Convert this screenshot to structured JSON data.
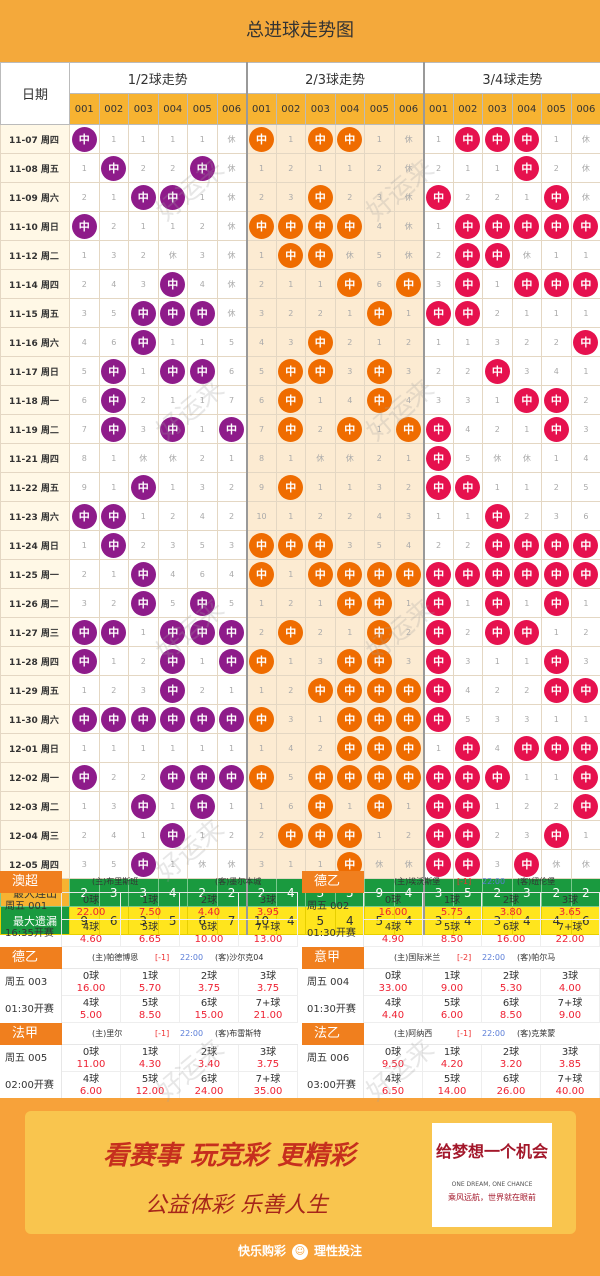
{
  "title": "总进球走势图",
  "header": {
    "date_label": "日期",
    "groups": [
      "1/2球走势",
      "2/3球走势",
      "3/4球走势"
    ],
    "nums": [
      "001",
      "002",
      "003",
      "004",
      "005",
      "006"
    ]
  },
  "ball_label": "中",
  "trend": [
    {
      "d": "11-07 周四",
      "c": [
        "中",
        "1",
        "1",
        "1",
        "1",
        "休",
        "中",
        "1",
        "中",
        "中",
        "1",
        "休",
        "1",
        "中",
        "中",
        "中",
        "1",
        "休"
      ]
    },
    {
      "d": "11-08 周五",
      "c": [
        "1",
        "中",
        "2",
        "2",
        "中",
        "休",
        "1",
        "2",
        "1",
        "1",
        "2",
        "休",
        "2",
        "1",
        "1",
        "中",
        "2",
        "休"
      ]
    },
    {
      "d": "11-09 周六",
      "c": [
        "2",
        "1",
        "中",
        "中",
        "1",
        "休",
        "2",
        "3",
        "中",
        "2",
        "3",
        "休",
        "中",
        "2",
        "2",
        "1",
        "中",
        "休"
      ]
    },
    {
      "d": "11-10 周日",
      "c": [
        "中",
        "2",
        "1",
        "1",
        "2",
        "休",
        "中",
        "中",
        "中",
        "中",
        "4",
        "休",
        "1",
        "中",
        "中",
        "中",
        "中",
        "中"
      ]
    },
    {
      "d": "11-12 周二",
      "c": [
        "1",
        "3",
        "2",
        "休",
        "3",
        "休",
        "1",
        "中",
        "中",
        "休",
        "5",
        "休",
        "2",
        "中",
        "中",
        "休",
        "1",
        "1"
      ]
    },
    {
      "d": "11-14 周四",
      "c": [
        "2",
        "4",
        "3",
        "中",
        "4",
        "休",
        "2",
        "1",
        "1",
        "中",
        "6",
        "中",
        "3",
        "中",
        "1",
        "中",
        "中",
        "中"
      ]
    },
    {
      "d": "11-15 周五",
      "c": [
        "3",
        "5",
        "中",
        "中",
        "中",
        "休",
        "3",
        "2",
        "2",
        "1",
        "中",
        "1",
        "中",
        "中",
        "2",
        "1",
        "1",
        "1"
      ]
    },
    {
      "d": "11-16 周六",
      "c": [
        "4",
        "6",
        "中",
        "1",
        "1",
        "5",
        "4",
        "3",
        "中",
        "2",
        "1",
        "2",
        "1",
        "1",
        "3",
        "2",
        "2",
        "中"
      ]
    },
    {
      "d": "11-17 周日",
      "c": [
        "5",
        "中",
        "1",
        "中",
        "中",
        "6",
        "5",
        "中",
        "中",
        "3",
        "中",
        "3",
        "2",
        "2",
        "中",
        "3",
        "4",
        "1"
      ]
    },
    {
      "d": "11-18 周一",
      "c": [
        "6",
        "中",
        "2",
        "1",
        "1",
        "7",
        "6",
        "中",
        "1",
        "4",
        "中",
        "4",
        "3",
        "3",
        "1",
        "中",
        "中",
        "2"
      ]
    },
    {
      "d": "11-19 周二",
      "c": [
        "7",
        "中",
        "3",
        "中",
        "1",
        "中",
        "7",
        "中",
        "2",
        "中",
        "1",
        "中",
        "中",
        "4",
        "2",
        "1",
        "中",
        "3"
      ]
    },
    {
      "d": "11-21 周四",
      "c": [
        "8",
        "1",
        "休",
        "休",
        "2",
        "1",
        "8",
        "1",
        "休",
        "休",
        "2",
        "1",
        "中",
        "5",
        "休",
        "休",
        "1",
        "4"
      ]
    },
    {
      "d": "11-22 周五",
      "c": [
        "9",
        "1",
        "中",
        "1",
        "3",
        "2",
        "9",
        "中",
        "1",
        "1",
        "3",
        "2",
        "中",
        "中",
        "1",
        "1",
        "2",
        "5"
      ]
    },
    {
      "d": "11-23 周六",
      "c": [
        "中",
        "中",
        "1",
        "2",
        "4",
        "2",
        "10",
        "1",
        "2",
        "2",
        "4",
        "3",
        "1",
        "1",
        "中",
        "2",
        "3",
        "6"
      ]
    },
    {
      "d": "11-24 周日",
      "c": [
        "1",
        "中",
        "2",
        "3",
        "5",
        "3",
        "中",
        "中",
        "中",
        "3",
        "5",
        "4",
        "2",
        "2",
        "中",
        "中",
        "中",
        "中"
      ]
    },
    {
      "d": "11-25 周一",
      "c": [
        "2",
        "1",
        "中",
        "4",
        "6",
        "4",
        "中",
        "1",
        "中",
        "中",
        "中",
        "中",
        "中",
        "中",
        "中",
        "中",
        "中",
        "中"
      ]
    },
    {
      "d": "11-26 周二",
      "c": [
        "3",
        "2",
        "中",
        "5",
        "中",
        "5",
        "1",
        "2",
        "1",
        "中",
        "中",
        "1",
        "中",
        "1",
        "中",
        "1",
        "中",
        "1"
      ]
    },
    {
      "d": "11-27 周三",
      "c": [
        "中",
        "中",
        "1",
        "中",
        "中",
        "中",
        "2",
        "中",
        "2",
        "1",
        "中",
        "2",
        "中",
        "2",
        "中",
        "中",
        "1",
        "2"
      ]
    },
    {
      "d": "11-28 周四",
      "c": [
        "中",
        "1",
        "2",
        "中",
        "1",
        "中",
        "中",
        "1",
        "3",
        "中",
        "中",
        "3",
        "中",
        "3",
        "1",
        "1",
        "中",
        "3"
      ]
    },
    {
      "d": "11-29 周五",
      "c": [
        "1",
        "2",
        "3",
        "中",
        "2",
        "1",
        "1",
        "2",
        "中",
        "中",
        "中",
        "中",
        "中",
        "4",
        "2",
        "2",
        "中",
        "中"
      ]
    },
    {
      "d": "11-30 周六",
      "c": [
        "中",
        "中",
        "中",
        "中",
        "中",
        "中",
        "中",
        "3",
        "1",
        "中",
        "中",
        "中",
        "中",
        "5",
        "3",
        "3",
        "1",
        "1"
      ]
    },
    {
      "d": "12-01 周日",
      "c": [
        "1",
        "1",
        "1",
        "1",
        "1",
        "1",
        "1",
        "4",
        "2",
        "中",
        "中",
        "中",
        "1",
        "中",
        "4",
        "中",
        "中",
        "中"
      ]
    },
    {
      "d": "12-02 周一",
      "c": [
        "中",
        "2",
        "2",
        "中",
        "中",
        "中",
        "中",
        "5",
        "中",
        "中",
        "中",
        "中",
        "中",
        "中",
        "中",
        "1",
        "1",
        "中"
      ]
    },
    {
      "d": "12-03 周二",
      "c": [
        "1",
        "3",
        "中",
        "1",
        "中",
        "1",
        "1",
        "6",
        "中",
        "1",
        "中",
        "1",
        "中",
        "中",
        "1",
        "2",
        "2",
        "中"
      ]
    },
    {
      "d": "12-04 周三",
      "c": [
        "2",
        "4",
        "1",
        "中",
        "1",
        "2",
        "2",
        "中",
        "中",
        "中",
        "1",
        "2",
        "中",
        "中",
        "2",
        "3",
        "中",
        "1"
      ]
    },
    {
      "d": "12-05 周四",
      "c": [
        "3",
        "5",
        "中",
        "1",
        "休",
        "休",
        "3",
        "1",
        "1",
        "中",
        "休",
        "休",
        "中",
        "中",
        "3",
        "中",
        "休",
        "休"
      ]
    }
  ],
  "stats": {
    "max_streak_label": "最大连出",
    "max_streak": [
      "2",
      "3",
      "3",
      "4",
      "2",
      "2",
      "2",
      "4",
      "3",
      "5",
      "9",
      "4",
      "3",
      "5",
      "2",
      "3",
      "2",
      "2"
    ],
    "max_miss_label": "最大遗漏",
    "max_miss": [
      "9",
      "6",
      "3",
      "5",
      "6",
      "7",
      "10",
      "4",
      "5",
      "4",
      "5",
      "4",
      "3",
      "4",
      "3",
      "4",
      "4",
      "6"
    ]
  },
  "matches": [
    {
      "league": "澳超",
      "no": "周五 001",
      "time": "16:35开赛",
      "home": "(主)布里斯班",
      "hcp": "",
      "away": "(客)墨尔本城",
      "odds": [
        [
          "0球",
          "22.00"
        ],
        [
          "1球",
          "7.50"
        ],
        [
          "2球",
          "4.40"
        ],
        [
          "3球",
          "3.95"
        ],
        [
          "4球",
          "4.60"
        ],
        [
          "5球",
          "6.65"
        ],
        [
          "6球",
          "10.00"
        ],
        [
          "7+球",
          "13.00"
        ]
      ]
    },
    {
      "league": "德乙",
      "no": "周五 002",
      "time": "01:30开赛",
      "home": "(主)埃沃斯堡",
      "hcp": "[-1]",
      "tt": "22:00",
      "away": "(客)纽伦堡",
      "odds": [
        [
          "0球",
          "16.00"
        ],
        [
          "1球",
          "5.75"
        ],
        [
          "2球",
          "3.80"
        ],
        [
          "3球",
          "3.65"
        ],
        [
          "4球",
          "4.90"
        ],
        [
          "5球",
          "8.50"
        ],
        [
          "6球",
          "16.00"
        ],
        [
          "7+球",
          "22.00"
        ]
      ]
    },
    {
      "league": "德乙",
      "no": "周五 003",
      "time": "01:30开赛",
      "home": "(主)帕德博恩",
      "hcp": "[-1]",
      "tt": "22:00",
      "away": "(客)沙尔克04",
      "odds": [
        [
          "0球",
          "16.00"
        ],
        [
          "1球",
          "5.70"
        ],
        [
          "2球",
          "3.75"
        ],
        [
          "3球",
          "3.75"
        ],
        [
          "4球",
          "5.00"
        ],
        [
          "5球",
          "8.50"
        ],
        [
          "6球",
          "15.00"
        ],
        [
          "7+球",
          "21.00"
        ]
      ]
    },
    {
      "league": "意甲",
      "no": "周五 004",
      "time": "01:30开赛",
      "home": "(主)国际米兰",
      "hcp": "[-2]",
      "tt": "22:00",
      "away": "(客)帕尔马",
      "odds": [
        [
          "0球",
          "33.00"
        ],
        [
          "1球",
          "9.00"
        ],
        [
          "2球",
          "5.30"
        ],
        [
          "3球",
          "4.00"
        ],
        [
          "4球",
          "4.40"
        ],
        [
          "5球",
          "6.00"
        ],
        [
          "6球",
          "8.50"
        ],
        [
          "7+球",
          "9.00"
        ]
      ]
    },
    {
      "league": "法甲",
      "no": "周五 005",
      "time": "02:00开赛",
      "home": "(主)里尔",
      "hcp": "[-1]",
      "tt": "22:00",
      "away": "(客)布雷斯特",
      "odds": [
        [
          "0球",
          "11.00"
        ],
        [
          "1球",
          "4.30"
        ],
        [
          "2球",
          "3.40"
        ],
        [
          "3球",
          "3.75"
        ],
        [
          "4球",
          "6.00"
        ],
        [
          "5球",
          "12.00"
        ],
        [
          "6球",
          "24.00"
        ],
        [
          "7+球",
          "35.00"
        ]
      ]
    },
    {
      "league": "法乙",
      "no": "周五 006",
      "time": "03:00开赛",
      "home": "(主)阿纳西",
      "hcp": "[-1]",
      "tt": "22:00",
      "away": "(客)克莱蒙",
      "odds": [
        [
          "0球",
          "9.50"
        ],
        [
          "1球",
          "4.20"
        ],
        [
          "2球",
          "3.20"
        ],
        [
          "3球",
          "3.85"
        ],
        [
          "4球",
          "6.50"
        ],
        [
          "5球",
          "14.00"
        ],
        [
          "6球",
          "26.00"
        ],
        [
          "7+球",
          "40.00"
        ]
      ]
    }
  ],
  "banner": {
    "slogan1": "看赛事 玩竞彩 更精彩",
    "slogan2": "公益体彩 乐善人生",
    "card_main": "给梦想一个机会",
    "card_en": "ONE DREAM, ONE CHANCE",
    "card_sub": "乘风远航，世界就在眼前",
    "footer_left": "快乐购彩",
    "footer_right": "理性投注"
  },
  "watermark": "好运来",
  "colors": {
    "group1": "#8e1b8a",
    "group2": "#ef6c00",
    "group3": "#e6114e",
    "header": "#f4a93b",
    "accent": "#f7b331"
  }
}
